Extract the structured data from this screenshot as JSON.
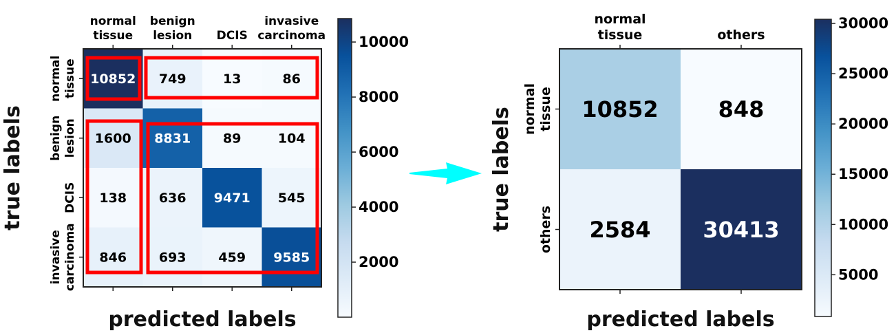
{
  "chart_data": [
    {
      "type": "heatmap",
      "x_categories": [
        [
          "normal",
          "tissue"
        ],
        [
          "benign",
          "lesion"
        ],
        [
          "DCIS"
        ],
        [
          "invasive",
          "carcinoma"
        ]
      ],
      "y_categories": [
        [
          "normal",
          "tissue"
        ],
        [
          "benign",
          "lesion"
        ],
        [
          "DCIS"
        ],
        [
          "invasive",
          "carcinoma"
        ]
      ],
      "values": [
        [
          10852,
          749,
          13,
          86
        ],
        [
          1600,
          8831,
          89,
          104
        ],
        [
          138,
          636,
          9471,
          545
        ],
        [
          846,
          693,
          459,
          9585
        ]
      ],
      "xlabel": "predicted labels",
      "ylabel": "true labels",
      "colorbar": {
        "range": [
          0,
          10852
        ],
        "ticks": [
          2000,
          4000,
          6000,
          8000,
          10000
        ]
      },
      "colormap": [
        "#f7fbff",
        "#deebf7",
        "#c6dbef",
        "#9ecae1",
        "#6baed6",
        "#4292c6",
        "#2171b5",
        "#08519c",
        "#1b2f5f"
      ],
      "highlight_color": "#ff0000"
    },
    {
      "type": "heatmap",
      "x_categories": [
        [
          "normal",
          "tissue"
        ],
        [
          "others"
        ]
      ],
      "y_categories": [
        [
          "normal",
          "tissue"
        ],
        [
          "others"
        ]
      ],
      "values": [
        [
          10852,
          848
        ],
        [
          2584,
          30413
        ]
      ],
      "xlabel": "predicted labels",
      "ylabel": "true labels",
      "colorbar": {
        "range": [
          848,
          30413
        ],
        "ticks": [
          5000,
          10000,
          15000,
          20000,
          25000,
          30000
        ]
      },
      "colormap": [
        "#f7fbff",
        "#deebf7",
        "#c6dbef",
        "#9ecae1",
        "#6baed6",
        "#4292c6",
        "#2171b5",
        "#08519c",
        "#1b2f5f"
      ]
    }
  ],
  "arrow_color": "#00ffff"
}
